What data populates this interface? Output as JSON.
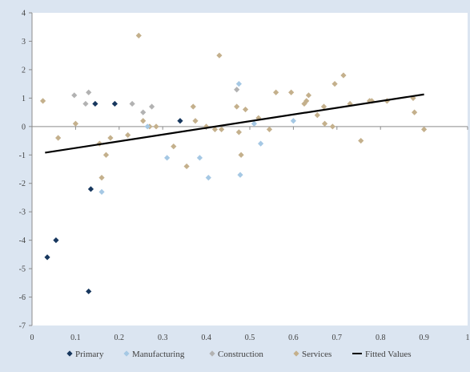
{
  "chart_data": {
    "type": "scatter",
    "title": "",
    "xlabel": "",
    "ylabel": "",
    "xlim": [
      0,
      1
    ],
    "ylim": [
      -7,
      4
    ],
    "x_ticks": [
      "0",
      "0.1",
      "0.2",
      "0.3",
      "0.4",
      "0.5",
      "0.6",
      "0.7",
      "0.8",
      "0.9",
      "1"
    ],
    "y_ticks": [
      "4",
      "3",
      "2",
      "1",
      "0",
      "-1",
      "-2",
      "-3",
      "-4",
      "-5",
      "-6",
      "-7"
    ],
    "grid": false,
    "legend_position": "bottom",
    "series": [
      {
        "name": "Primary",
        "color": "#17375e",
        "marker": "diamond",
        "points": [
          [
            0.035,
            -4.6
          ],
          [
            0.055,
            -4.0
          ],
          [
            0.13,
            -5.8
          ],
          [
            0.135,
            -2.2
          ],
          [
            0.145,
            0.8
          ],
          [
            0.19,
            0.8
          ],
          [
            0.34,
            0.2
          ]
        ]
      },
      {
        "name": "Manufacturing",
        "color": "#a5c8e4",
        "marker": "diamond",
        "points": [
          [
            0.16,
            -2.3
          ],
          [
            0.265,
            0.0
          ],
          [
            0.31,
            -1.1
          ],
          [
            0.385,
            -1.1
          ],
          [
            0.405,
            -1.8
          ],
          [
            0.475,
            1.5
          ],
          [
            0.478,
            -1.7
          ],
          [
            0.51,
            0.1
          ],
          [
            0.525,
            -0.6
          ],
          [
            0.6,
            0.2
          ]
        ]
      },
      {
        "name": "Construction",
        "color": "#b2b2b2",
        "marker": "diamond",
        "points": [
          [
            0.097,
            1.1
          ],
          [
            0.123,
            0.8
          ],
          [
            0.13,
            1.2
          ],
          [
            0.23,
            0.8
          ],
          [
            0.255,
            0.5
          ],
          [
            0.275,
            0.7
          ],
          [
            0.47,
            1.3
          ]
        ]
      },
      {
        "name": "Services",
        "color": "#c4b08c",
        "marker": "diamond",
        "points": [
          [
            0.025,
            0.9
          ],
          [
            0.06,
            -0.4
          ],
          [
            0.1,
            0.1
          ],
          [
            0.155,
            -0.6
          ],
          [
            0.16,
            -1.8
          ],
          [
            0.17,
            -1.0
          ],
          [
            0.18,
            -0.4
          ],
          [
            0.22,
            -0.3
          ],
          [
            0.245,
            3.2
          ],
          [
            0.255,
            0.2
          ],
          [
            0.27,
            0.0
          ],
          [
            0.285,
            0.0
          ],
          [
            0.325,
            -0.7
          ],
          [
            0.355,
            -1.4
          ],
          [
            0.37,
            0.7
          ],
          [
            0.375,
            0.2
          ],
          [
            0.4,
            0.0
          ],
          [
            0.42,
            -0.1
          ],
          [
            0.43,
            2.5
          ],
          [
            0.435,
            -0.1
          ],
          [
            0.47,
            0.7
          ],
          [
            0.475,
            -0.2
          ],
          [
            0.48,
            -1.0
          ],
          [
            0.49,
            0.6
          ],
          [
            0.52,
            0.3
          ],
          [
            0.545,
            -0.1
          ],
          [
            0.56,
            1.2
          ],
          [
            0.595,
            1.2
          ],
          [
            0.625,
            0.8
          ],
          [
            0.63,
            0.9
          ],
          [
            0.635,
            1.1
          ],
          [
            0.655,
            0.4
          ],
          [
            0.67,
            0.7
          ],
          [
            0.672,
            0.1
          ],
          [
            0.69,
            0.0
          ],
          [
            0.695,
            1.5
          ],
          [
            0.715,
            1.8
          ],
          [
            0.73,
            0.8
          ],
          [
            0.755,
            -0.5
          ],
          [
            0.775,
            0.9
          ],
          [
            0.78,
            0.9
          ],
          [
            0.815,
            0.9
          ],
          [
            0.875,
            1.0
          ],
          [
            0.878,
            0.5
          ],
          [
            0.9,
            -0.1
          ]
        ]
      },
      {
        "name": "Fitted Values",
        "color": "#000000",
        "type": "line",
        "points": [
          [
            0.03,
            -0.92
          ],
          [
            0.9,
            1.13
          ]
        ]
      }
    ]
  }
}
